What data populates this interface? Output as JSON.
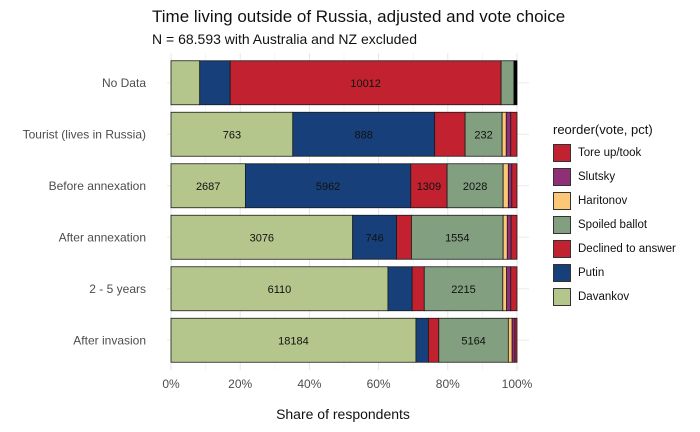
{
  "chart_data": {
    "type": "bar",
    "orientation": "horizontal",
    "stacked": true,
    "normalized": true,
    "title": "Time living outside of Russia, adjusted and vote choice",
    "subtitle": "N = 68.593 with Australia and NZ excluded",
    "xlabel": "Share of respondents",
    "ylabel": "",
    "xlim": [
      0,
      1
    ],
    "x_ticks": [
      "0%",
      "20%",
      "40%",
      "60%",
      "80%",
      "100%"
    ],
    "grid": true,
    "legend_position": "right",
    "legend_title": "reorder(vote, pct)",
    "categories": [
      "No Data",
      "Tourist (lives in Russia)",
      "Before annexation",
      "After annexation",
      "2 - 5 years",
      "After invasion"
    ],
    "series": [
      {
        "name": "Davankov",
        "color": "#b5c68c",
        "shares": [
          0.083,
          0.352,
          0.215,
          0.525,
          0.627,
          0.708
        ],
        "labels": [
          "",
          "763",
          "2687",
          "3076",
          "6110",
          "18184"
        ]
      },
      {
        "name": "Putin",
        "color": "#17407a",
        "shares": [
          0.088,
          0.41,
          0.478,
          0.127,
          0.07,
          0.036
        ],
        "labels": [
          "",
          "888",
          "5962",
          "746",
          "",
          ""
        ]
      },
      {
        "name": "Declined to answer",
        "color": "#c2222f",
        "shares": [
          0.783,
          0.088,
          0.105,
          0.043,
          0.035,
          0.03
        ],
        "labels": [
          "10012",
          "",
          "1309",
          "",
          "",
          ""
        ]
      },
      {
        "name": "Spoiled ballot",
        "color": "#829f80",
        "shares": [
          0.037,
          0.107,
          0.162,
          0.265,
          0.227,
          0.201
        ],
        "labels": [
          "",
          "232",
          "2028",
          "1554",
          "2215",
          "5164"
        ]
      },
      {
        "name": "Haritonov",
        "color": "#fcc776",
        "shares": [
          0.0,
          0.012,
          0.015,
          0.012,
          0.011,
          0.011
        ],
        "labels": [
          "",
          "",
          "",
          "",
          "",
          ""
        ]
      },
      {
        "name": "Slutsky",
        "color": "#8e2f78",
        "shares": [
          0.0,
          0.013,
          0.01,
          0.011,
          0.012,
          0.008
        ],
        "labels": [
          "",
          "",
          "",
          "",
          "",
          ""
        ]
      },
      {
        "name": "Tore up/took",
        "color": "#c2222f",
        "shares": [
          0.009,
          0.018,
          0.015,
          0.017,
          0.018,
          0.006
        ],
        "labels": [
          "",
          "",
          "",
          "",
          "",
          ""
        ]
      }
    ],
    "no_data_end_mark_color": "#000000"
  }
}
